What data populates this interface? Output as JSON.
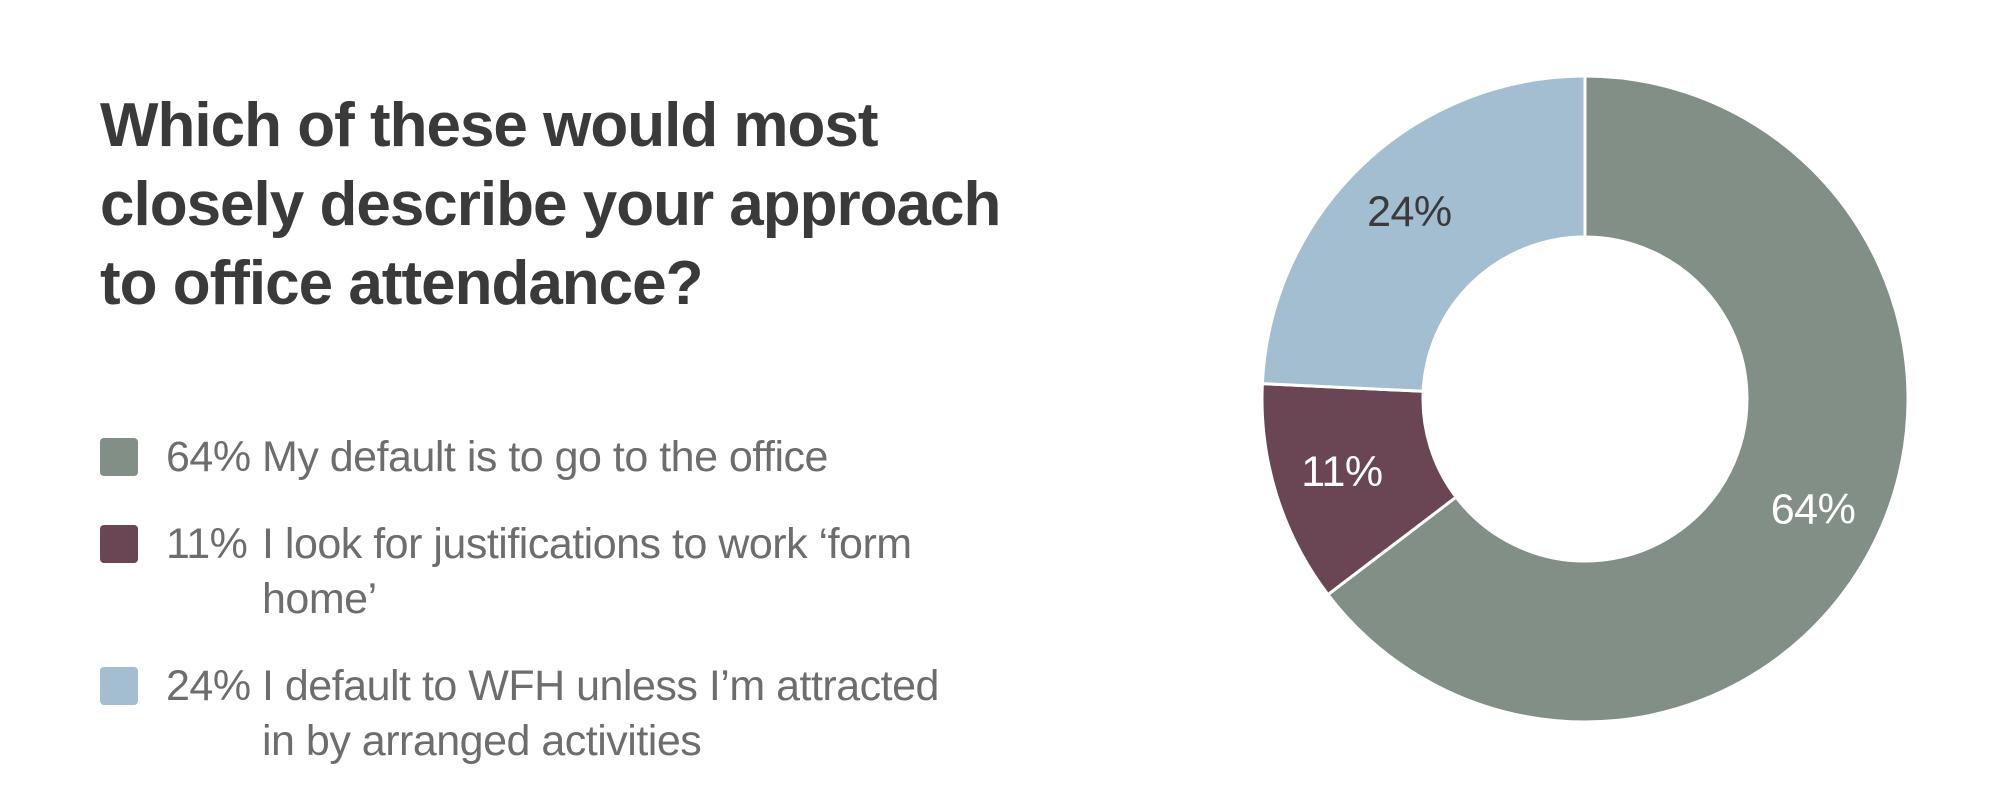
{
  "chart_data": {
    "type": "pie",
    "donut": true,
    "title": "Which of these would most closely describe your approach to office attendance?",
    "categories": [
      "My default is to go to the office",
      "I look for justifications to work ‘form home’",
      "I default to WFH unless I’m attracted in by arranged activities"
    ],
    "values": [
      64,
      11,
      24
    ],
    "value_labels": [
      "64%",
      "11%",
      "24%"
    ],
    "colors": [
      "#818f86",
      "#6a4654",
      "#a3bdd1"
    ]
  }
}
